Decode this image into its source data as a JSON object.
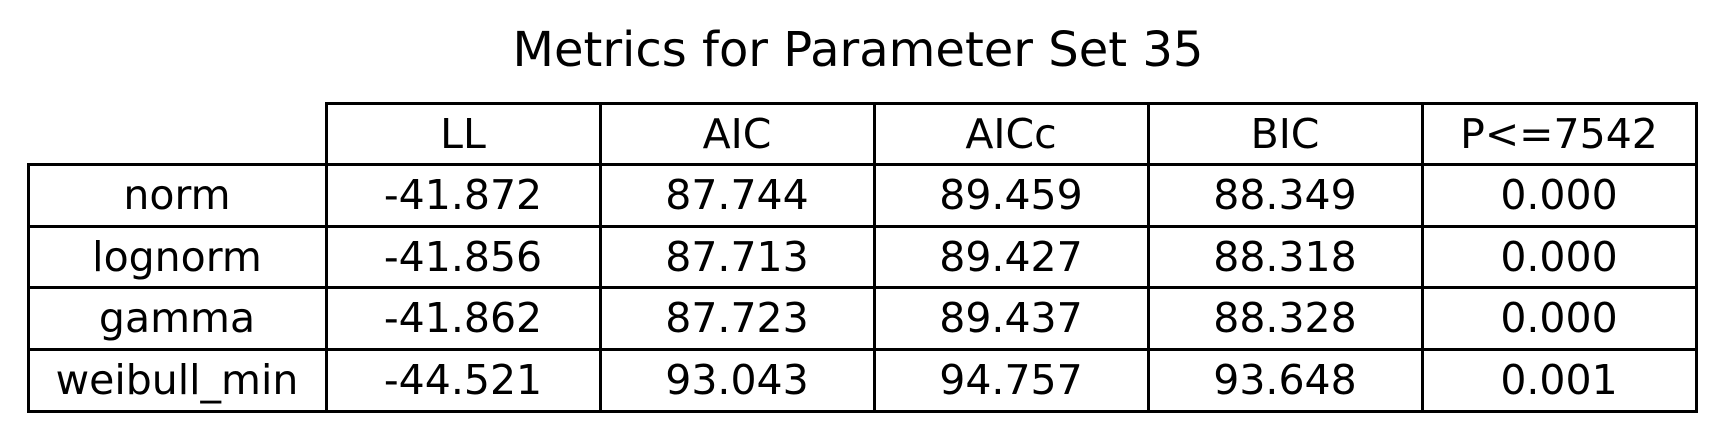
{
  "chart_data": {
    "type": "table",
    "title": "Metrics for Parameter Set 35",
    "columns": [
      "LL",
      "AIC",
      "AICc",
      "BIC",
      "P<=7542"
    ],
    "rows": [
      {
        "label": "norm",
        "values": [
          "-41.872",
          "87.744",
          "89.459",
          "88.349",
          "0.000"
        ]
      },
      {
        "label": "lognorm",
        "values": [
          "-41.856",
          "87.713",
          "89.427",
          "88.318",
          "0.000"
        ]
      },
      {
        "label": "gamma",
        "values": [
          "-41.862",
          "87.723",
          "89.437",
          "88.328",
          "0.000"
        ]
      },
      {
        "label": "weibull_min",
        "values": [
          "-44.521",
          "93.043",
          "94.757",
          "93.648",
          "0.001"
        ]
      }
    ],
    "grid": true
  }
}
